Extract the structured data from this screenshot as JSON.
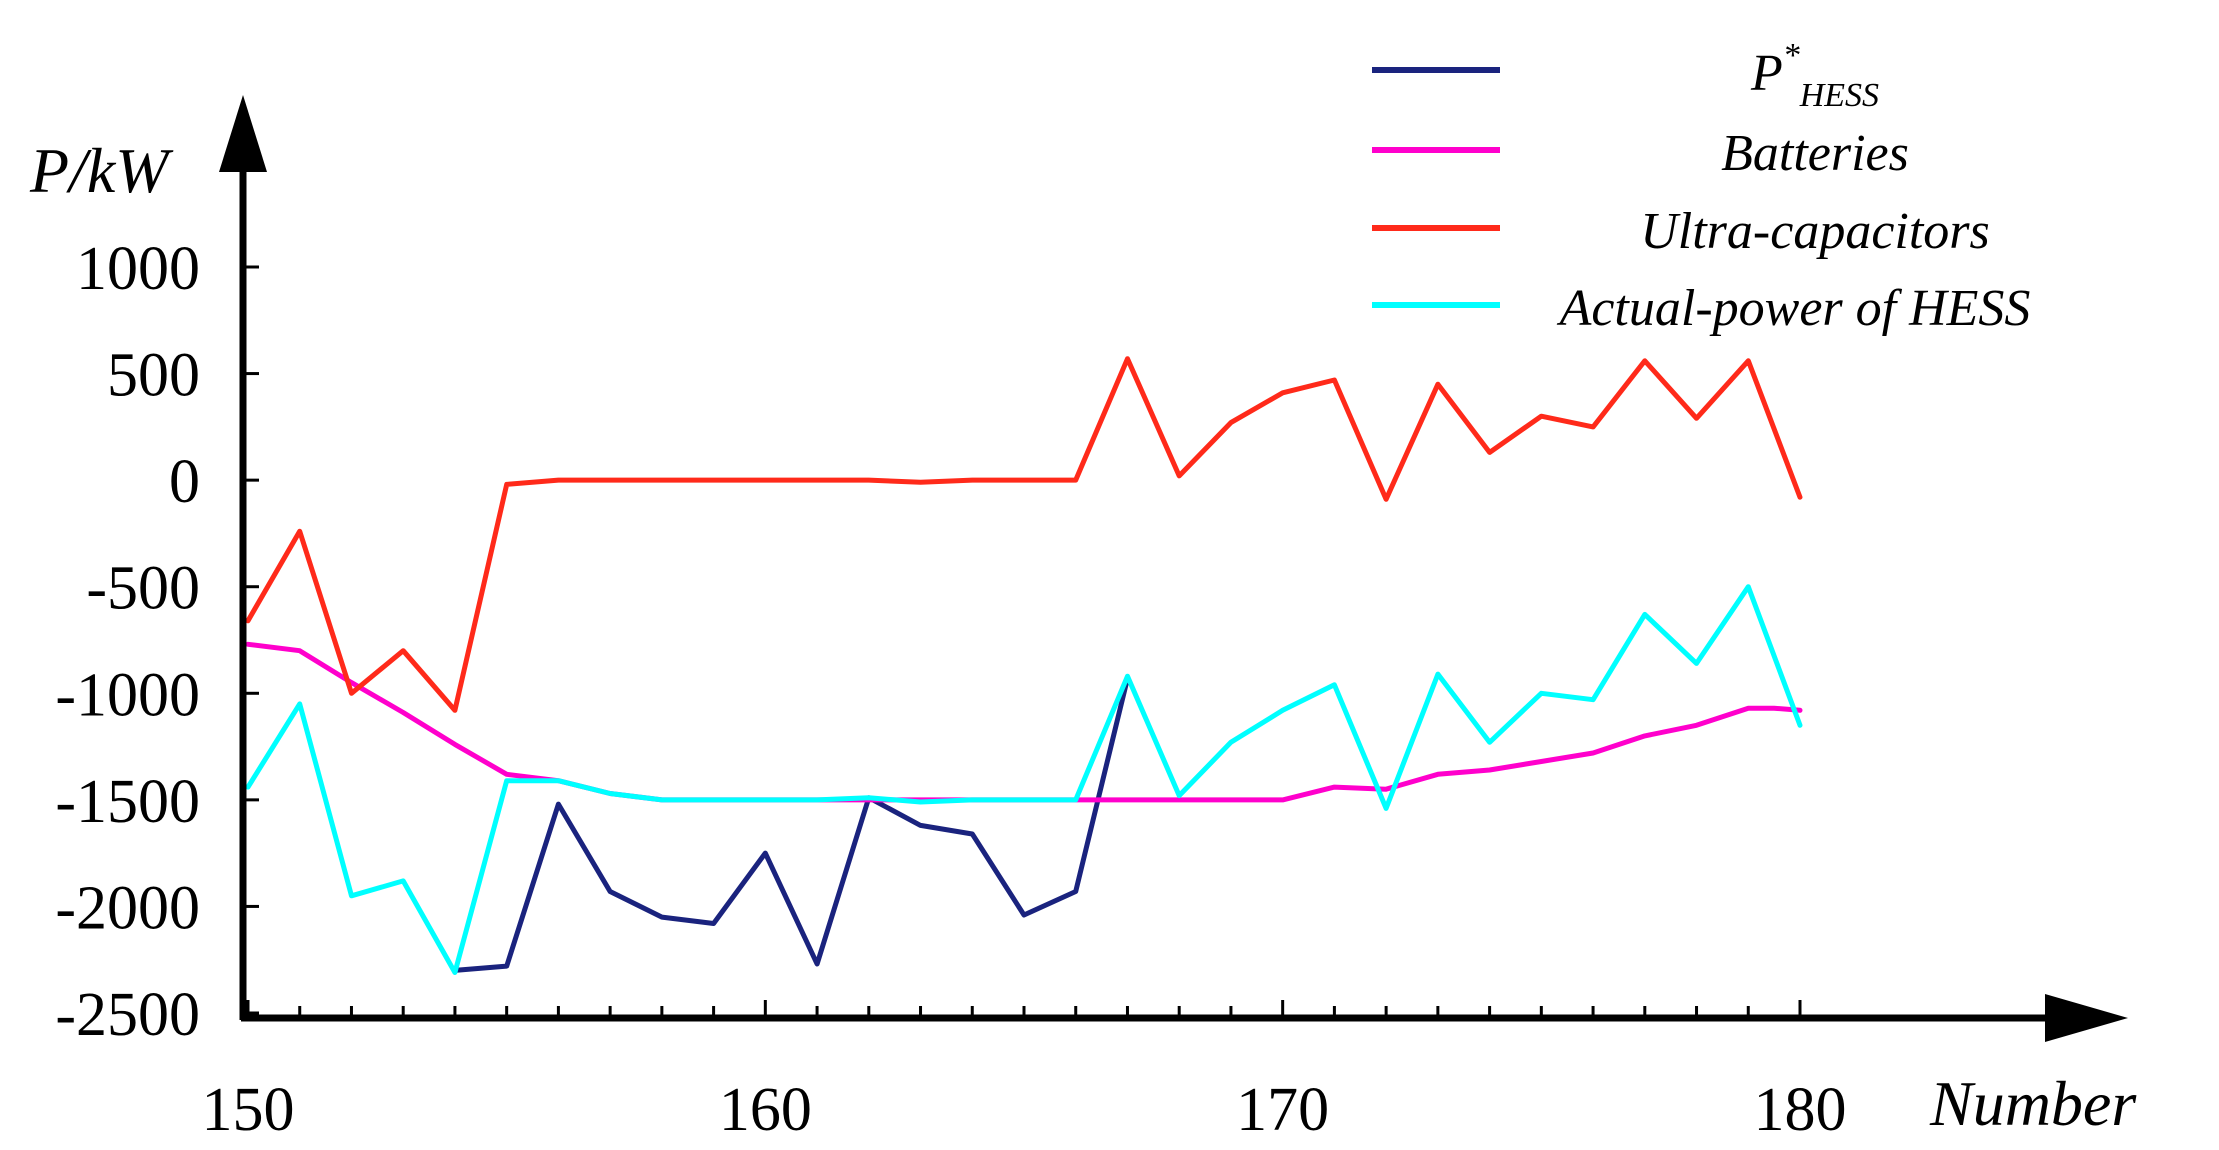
{
  "chart_data": {
    "type": "line",
    "xlabel": "Number",
    "ylabel": "P/kW",
    "xlim": [
      150,
      180
    ],
    "ylim": [
      -2500,
      1000
    ],
    "x_ticks": [
      150,
      160,
      170,
      180
    ],
    "y_ticks": [
      1000,
      500,
      0,
      -500,
      -1000,
      -1500,
      -2000,
      -2500
    ],
    "x_tick_labels": [
      "150",
      "160",
      "170",
      "180"
    ],
    "y_tick_labels": [
      "1000",
      "500",
      "0",
      "-500",
      "-1000",
      "-1500",
      "-2000",
      "-2500"
    ],
    "legend_position": "top-right",
    "grid": false,
    "x": [
      150,
      151,
      152,
      153,
      154,
      155,
      156,
      157,
      158,
      159,
      160,
      161,
      162,
      163,
      164,
      165,
      166,
      167,
      168,
      169,
      170,
      171,
      172,
      173,
      174,
      175,
      176,
      177,
      178,
      179,
      180
    ],
    "series": [
      {
        "name": "P*HESS",
        "name_main": "P",
        "name_sup": "*",
        "name_sub": "HESS",
        "color": "#1a237e",
        "x": [
          154,
          155,
          156,
          157,
          158,
          159,
          160,
          161,
          162,
          163,
          164,
          165,
          166,
          167
        ],
        "values": [
          -2300,
          -2280,
          -1520,
          -1930,
          -2050,
          -2080,
          -1750,
          -2270,
          -1490,
          -1620,
          -1660,
          -2040,
          -1930,
          -930
        ]
      },
      {
        "name": "Batteries",
        "color": "#ff00cc",
        "x": [
          150,
          151,
          152,
          153,
          154,
          155,
          156,
          157,
          158,
          159,
          160,
          161,
          162,
          163,
          164,
          165,
          166,
          167,
          168,
          169,
          170,
          171,
          172,
          173,
          174,
          175,
          176,
          177,
          178,
          179,
          179.5,
          180
        ],
        "values": [
          -770,
          -800,
          -950,
          -1090,
          -1240,
          -1380,
          -1410,
          -1470,
          -1500,
          -1500,
          -1500,
          -1500,
          -1500,
          -1500,
          -1500,
          -1500,
          -1500,
          -1500,
          -1500,
          -1500,
          -1500,
          -1440,
          -1450,
          -1380,
          -1360,
          -1320,
          -1280,
          -1200,
          -1150,
          -1070,
          -1070,
          -1080
        ]
      },
      {
        "name": "Ultra-capacitors",
        "color": "#ff2a1a",
        "x": [
          150,
          151,
          152,
          153,
          154,
          155,
          156,
          157,
          158,
          159,
          160,
          161,
          162,
          163,
          164,
          165,
          166,
          167,
          168,
          169,
          170,
          171,
          172,
          173,
          174,
          175,
          176,
          177,
          178,
          179,
          180
        ],
        "values": [
          -660,
          -240,
          -1000,
          -800,
          -1080,
          -20,
          0,
          0,
          0,
          0,
          0,
          0,
          0,
          -10,
          0,
          0,
          0,
          570,
          20,
          270,
          410,
          470,
          -90,
          450,
          130,
          300,
          250,
          560,
          290,
          560,
          -80
        ]
      },
      {
        "name": "Actual-power of HESS",
        "color": "#00ffff",
        "x": [
          150,
          151,
          152,
          153,
          154,
          155,
          156,
          157,
          158,
          159,
          160,
          161,
          162,
          163,
          164,
          165,
          166,
          167,
          168,
          169,
          170,
          171,
          172,
          173,
          174,
          175,
          176,
          177,
          178,
          179,
          180
        ],
        "values": [
          -1440,
          -1050,
          -1950,
          -1880,
          -2310,
          -1410,
          -1410,
          -1470,
          -1500,
          -1500,
          -1500,
          -1500,
          -1490,
          -1510,
          -1500,
          -1500,
          -1500,
          -920,
          -1480,
          -1230,
          -1080,
          -960,
          -1540,
          -910,
          -1230,
          -1000,
          -1030,
          -630,
          -860,
          -500,
          -1150
        ]
      }
    ]
  }
}
